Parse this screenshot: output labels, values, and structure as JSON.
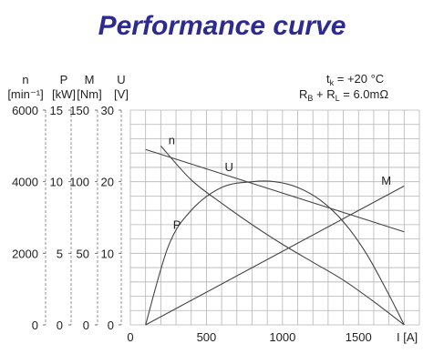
{
  "title": "Performance curve",
  "conditions": {
    "line1": "t_k = +20 °C",
    "line1_parts": {
      "t": "t",
      "sub": "k",
      "rest": " = +20  °C"
    },
    "line2_parts": {
      "r1": "R",
      "s1": "B",
      "plus": " + ",
      "r2": "R",
      "s2": "L",
      "rest": " = 6.0mΩ"
    }
  },
  "chart_data": {
    "type": "line",
    "xlabel": "I [A]",
    "x_label_symbol": "I",
    "x_label_unit": "[A]",
    "xlim": [
      0,
      1900
    ],
    "x_ticks": [
      0,
      500,
      1000,
      1500
    ],
    "axes": [
      {
        "symbol": "n",
        "unit": "[min⁻¹]",
        "range": [
          0,
          6000
        ],
        "ticks": [
          0,
          2000,
          4000,
          6000
        ]
      },
      {
        "symbol": "P",
        "unit": "[kW]",
        "range": [
          0,
          15
        ],
        "ticks": [
          0,
          5,
          10,
          15
        ]
      },
      {
        "symbol": "M",
        "unit": "[Nm]",
        "range": [
          0,
          150
        ],
        "ticks": [
          0,
          50,
          100,
          150
        ]
      },
      {
        "symbol": "U",
        "unit": "[V]",
        "range": [
          0,
          30
        ],
        "ticks": [
          0,
          10,
          20,
          30
        ]
      }
    ],
    "grid": true,
    "series": [
      {
        "name": "n",
        "axis": "n",
        "x": [
          200,
          400,
          600,
          800,
          1000,
          1200,
          1400,
          1600,
          1800
        ],
        "y": [
          5000,
          4050,
          3400,
          2800,
          2250,
          1750,
          1250,
          650,
          0
        ]
      },
      {
        "name": "U",
        "axis": "U",
        "x": [
          100,
          1800
        ],
        "y": [
          24.5,
          13.0
        ]
      },
      {
        "name": "M",
        "axis": "M",
        "x": [
          100,
          1800
        ],
        "y": [
          0,
          97
        ]
      },
      {
        "name": "P",
        "axis": "P",
        "x": [
          100,
          250,
          400,
          600,
          800,
          950,
          1100,
          1250,
          1400,
          1550,
          1700,
          1800
        ],
        "y": [
          0,
          5.5,
          8.0,
          9.6,
          10.0,
          10.0,
          9.6,
          8.7,
          7.2,
          5.0,
          2.1,
          0
        ]
      }
    ],
    "series_label_positions": {
      "n": [
        250,
        5050
      ],
      "U": [
        620,
        21.5
      ],
      "M": [
        1650,
        98
      ],
      "P": [
        280,
        6.7
      ]
    }
  }
}
